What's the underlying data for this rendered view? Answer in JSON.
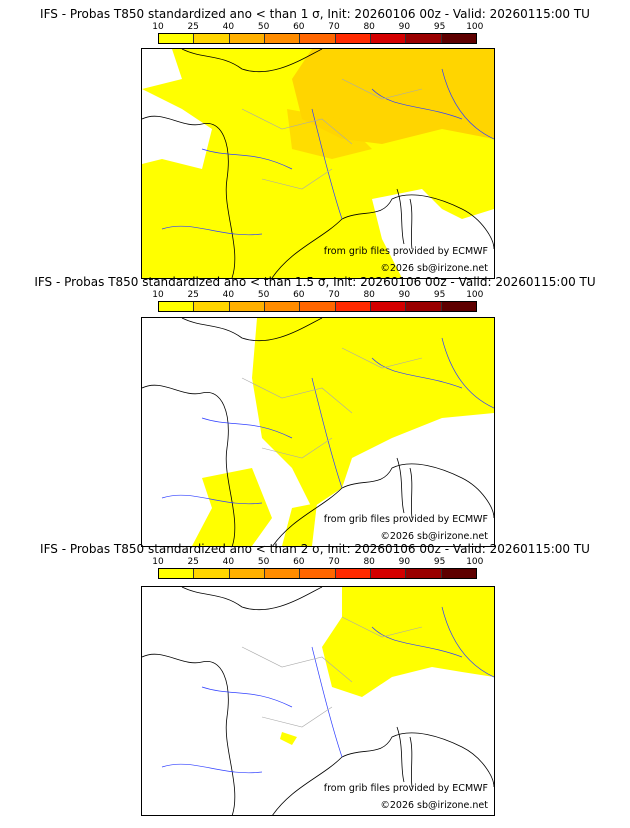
{
  "panels": [
    {
      "title": "IFS - Probas T850  standardized ano < than 1 σ, Init: 20260106 00z - Valid: 20260115:00 TU",
      "threshold": "1 σ"
    },
    {
      "title": "IFS - Probas T850  standardized ano < than 1.5 σ, Init: 20260106 00z - Valid: 20260115:00 TU",
      "threshold": "1.5 σ"
    },
    {
      "title": "IFS - Probas T850  standardized ano < than 2 σ, Init: 20260106 00z - Valid: 20260115:00 TU",
      "threshold": "2 σ"
    }
  ],
  "colorbar": {
    "ticks": [
      "10",
      "25",
      "40",
      "50",
      "60",
      "70",
      "80",
      "90",
      "95",
      "100"
    ],
    "colors": [
      "#ffff00",
      "#ffd500",
      "#ffb000",
      "#ff8c00",
      "#ff6600",
      "#ff2a00",
      "#d40000",
      "#9a0000",
      "#5e0000"
    ]
  },
  "credits": {
    "source": "from grib files provided by ECMWF",
    "copyright": "©2026 sb@irizone.net"
  }
}
